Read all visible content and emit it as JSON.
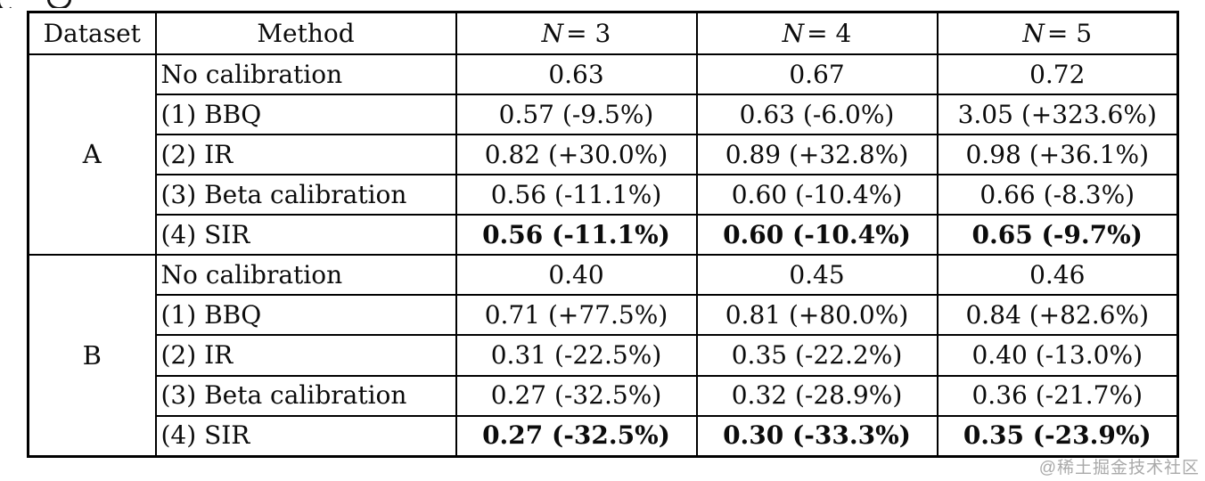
{
  "watermark": {
    "text": "@稀土掘金技术社区",
    "color": "#a9a9a9"
  },
  "table": {
    "headers": {
      "dataset": "Dataset",
      "method": "Method",
      "n_columns": [
        {
          "symbol": "N",
          "rest": "= 3"
        },
        {
          "symbol": "N",
          "rest": "= 4"
        },
        {
          "symbol": "N",
          "rest": "= 5"
        }
      ]
    },
    "groups": [
      {
        "dataset": "A",
        "rows": [
          {
            "method": "No calibration",
            "values": [
              "0.63",
              "0.67",
              "0.72"
            ],
            "bold": false
          },
          {
            "method": "(1) BBQ",
            "values": [
              "0.57 (-9.5%)",
              "0.63 (-6.0%)",
              "3.05 (+323.6%)"
            ],
            "bold": false
          },
          {
            "method": "(2) IR",
            "values": [
              "0.82 (+30.0%)",
              "0.89 (+32.8%)",
              "0.98 (+36.1%)"
            ],
            "bold": false
          },
          {
            "method": "(3) Beta calibration",
            "values": [
              "0.56 (-11.1%)",
              "0.60 (-10.4%)",
              "0.66 (-8.3%)"
            ],
            "bold": false
          },
          {
            "method": "(4) SIR",
            "values": [
              "0.56 (-11.1%)",
              "0.60 (-10.4%)",
              "0.65 (-9.7%)"
            ],
            "bold": true
          }
        ]
      },
      {
        "dataset": "B",
        "rows": [
          {
            "method": "No calibration",
            "values": [
              "0.40",
              "0.45",
              "0.46"
            ],
            "bold": false
          },
          {
            "method": "(1) BBQ",
            "values": [
              "0.71 (+77.5%)",
              "0.81 (+80.0%)",
              "0.84 (+82.6%)"
            ],
            "bold": false
          },
          {
            "method": "(2) IR",
            "values": [
              "0.31 (-22.5%)",
              "0.35 (-22.2%)",
              "0.40 (-13.0%)"
            ],
            "bold": false
          },
          {
            "method": "(3) Beta calibration",
            "values": [
              "0.27 (-32.5%)",
              "0.32 (-28.9%)",
              "0.36 (-21.7%)"
            ],
            "bold": false
          },
          {
            "method": "(4) SIR",
            "values": [
              "0.27 (-32.5%)",
              "0.30 (-33.3%)",
              "0.35 (-23.9%)"
            ],
            "bold": true
          }
        ]
      }
    ]
  }
}
